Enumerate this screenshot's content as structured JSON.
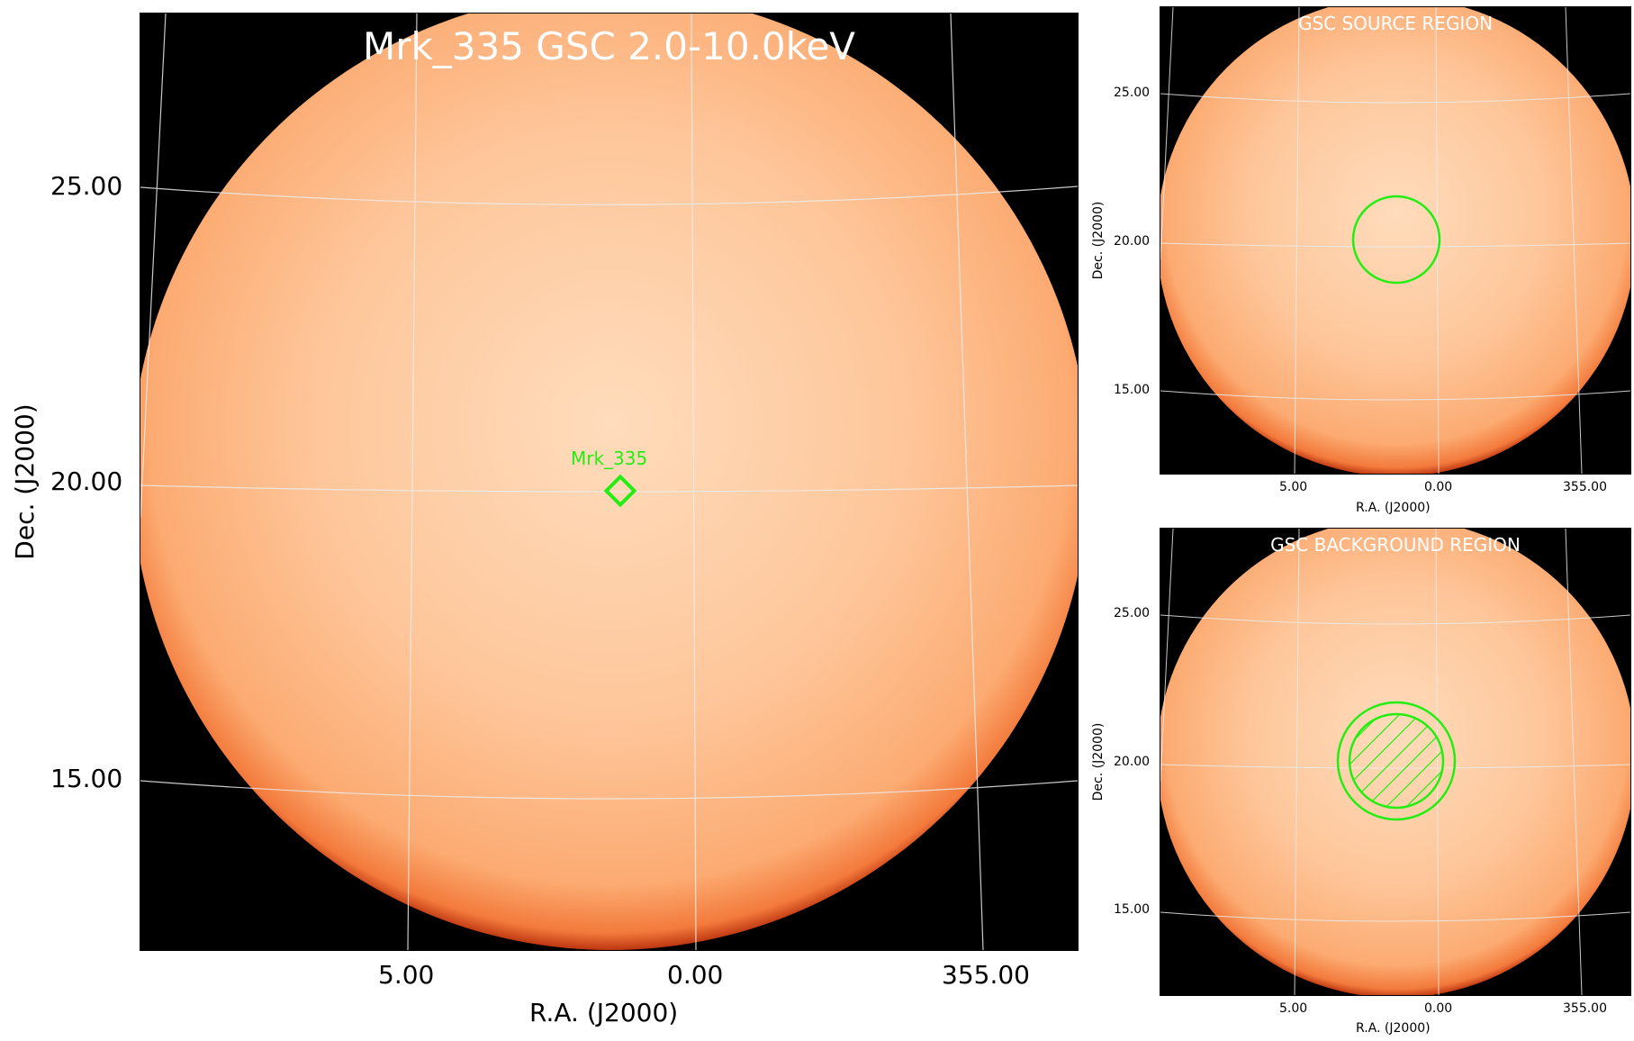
{
  "main": {
    "title": "Mrk_335 GSC 2.0-10.0keV",
    "source_label": "Mrk_335",
    "xlabel": "R.A. (J2000)",
    "ylabel": "Dec. (J2000)",
    "xticks": [
      "5.00",
      "0.00",
      "355.00"
    ],
    "yticks": [
      "25.00",
      "20.00",
      "15.00"
    ]
  },
  "source_panel": {
    "title": "GSC SOURCE REGION",
    "xlabel": "R.A. (J2000)",
    "ylabel": "Dec. (J2000)",
    "xticks": [
      "5.00",
      "0.00",
      "355.00"
    ],
    "yticks": [
      "25.00",
      "20.00",
      "15.00"
    ]
  },
  "background_panel": {
    "title": "GSC BACKGROUND REGION",
    "xlabel": "R.A. (J2000)",
    "ylabel": "Dec. (J2000)",
    "xticks": [
      "5.00",
      "0.00",
      "355.00"
    ],
    "yticks": [
      "25.00",
      "20.00",
      "15.00"
    ]
  },
  "colors": {
    "region": "#22ee11",
    "disk_center": "#ffd8b4",
    "disk_mid": "#fdb07a",
    "disk_edge": "#e0401a",
    "background": "#000000",
    "grid": "#e8e8e8"
  }
}
